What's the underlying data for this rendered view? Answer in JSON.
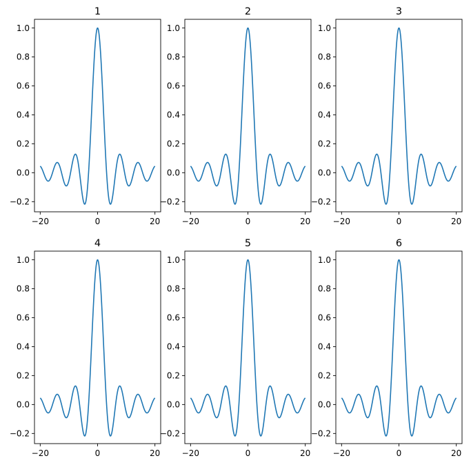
{
  "figure": {
    "background": "#ffffff",
    "line_color": "#1f77b4",
    "layout": "2x3 grid"
  },
  "chart_data": [
    {
      "type": "line",
      "title": "1",
      "function": "sin(x)/x",
      "x_range": [
        -20,
        20
      ],
      "xlim": [
        -22,
        22
      ],
      "ylim": [
        -0.27,
        1.06
      ],
      "xticks": [
        -20,
        0,
        20
      ],
      "xtick_labels": [
        "−20",
        "0",
        "20"
      ],
      "yticks": [
        -0.2,
        0,
        0.2,
        0.4,
        0.6,
        0.8,
        1.0
      ],
      "ytick_labels": [
        "−0.2",
        "0.0",
        "0.2",
        "0.4",
        "0.6",
        "0.8",
        "1.0"
      ],
      "series": [
        {
          "x": [
            -20,
            -17.22,
            -14.07,
            -10.9,
            -7.73,
            -4.49,
            0,
            4.49,
            7.73,
            10.9,
            14.07,
            17.22,
            20
          ],
          "y": [
            0.046,
            -0.058,
            0.071,
            -0.091,
            0.128,
            -0.217,
            1.0,
            -0.217,
            0.128,
            -0.091,
            0.071,
            -0.058,
            0.046
          ]
        }
      ],
      "grid": false,
      "legend": "none"
    },
    {
      "type": "line",
      "title": "2",
      "function": "sin(x)/x",
      "x_range": [
        -20,
        20
      ],
      "xlim": [
        -22,
        22
      ],
      "ylim": [
        -0.27,
        1.06
      ],
      "xticks": [
        -20,
        0,
        20
      ],
      "xtick_labels": [
        "−20",
        "0",
        "20"
      ],
      "yticks": [
        -0.2,
        0,
        0.2,
        0.4,
        0.6,
        0.8,
        1.0
      ],
      "ytick_labels": [
        "−0.2",
        "0.0",
        "0.2",
        "0.4",
        "0.6",
        "0.8",
        "1.0"
      ],
      "series": [
        {
          "x": [
            -20,
            -17.22,
            -14.07,
            -10.9,
            -7.73,
            -4.49,
            0,
            4.49,
            7.73,
            10.9,
            14.07,
            17.22,
            20
          ],
          "y": [
            0.046,
            -0.058,
            0.071,
            -0.091,
            0.128,
            -0.217,
            1.0,
            -0.217,
            0.128,
            -0.091,
            0.071,
            -0.058,
            0.046
          ]
        }
      ],
      "grid": false,
      "legend": "none"
    },
    {
      "type": "line",
      "title": "3",
      "function": "sin(x)/x",
      "x_range": [
        -20,
        20
      ],
      "xlim": [
        -22,
        22
      ],
      "ylim": [
        -0.27,
        1.06
      ],
      "xticks": [
        -20,
        0,
        20
      ],
      "xtick_labels": [
        "−20",
        "0",
        "20"
      ],
      "yticks": [
        -0.2,
        0,
        0.2,
        0.4,
        0.6,
        0.8,
        1.0
      ],
      "ytick_labels": [
        "−0.2",
        "0.0",
        "0.2",
        "0.4",
        "0.6",
        "0.8",
        "1.0"
      ],
      "series": [
        {
          "x": [
            -20,
            -17.22,
            -14.07,
            -10.9,
            -7.73,
            -4.49,
            0,
            4.49,
            7.73,
            10.9,
            14.07,
            17.22,
            20
          ],
          "y": [
            0.046,
            -0.058,
            0.071,
            -0.091,
            0.128,
            -0.217,
            1.0,
            -0.217,
            0.128,
            -0.091,
            0.071,
            -0.058,
            0.046
          ]
        }
      ],
      "grid": false,
      "legend": "none"
    },
    {
      "type": "line",
      "title": "4",
      "function": "sin(x)/x",
      "x_range": [
        -20,
        20
      ],
      "xlim": [
        -22,
        22
      ],
      "ylim": [
        -0.27,
        1.06
      ],
      "xticks": [
        -20,
        0,
        20
      ],
      "xtick_labels": [
        "−20",
        "0",
        "20"
      ],
      "yticks": [
        -0.2,
        0,
        0.2,
        0.4,
        0.6,
        0.8,
        1.0
      ],
      "ytick_labels": [
        "−0.2",
        "0.0",
        "0.2",
        "0.4",
        "0.6",
        "0.8",
        "1.0"
      ],
      "series": [
        {
          "x": [
            -20,
            -17.22,
            -14.07,
            -10.9,
            -7.73,
            -4.49,
            0,
            4.49,
            7.73,
            10.9,
            14.07,
            17.22,
            20
          ],
          "y": [
            0.046,
            -0.058,
            0.071,
            -0.091,
            0.128,
            -0.217,
            1.0,
            -0.217,
            0.128,
            -0.091,
            0.071,
            -0.058,
            0.046
          ]
        }
      ],
      "grid": false,
      "legend": "none"
    },
    {
      "type": "line",
      "title": "5",
      "function": "sin(x)/x",
      "x_range": [
        -20,
        20
      ],
      "xlim": [
        -22,
        22
      ],
      "ylim": [
        -0.27,
        1.06
      ],
      "xticks": [
        -20,
        0,
        20
      ],
      "xtick_labels": [
        "−20",
        "0",
        "20"
      ],
      "yticks": [
        -0.2,
        0,
        0.2,
        0.4,
        0.6,
        0.8,
        1.0
      ],
      "ytick_labels": [
        "−0.2",
        "0.0",
        "0.2",
        "0.4",
        "0.6",
        "0.8",
        "1.0"
      ],
      "series": [
        {
          "x": [
            -20,
            -17.22,
            -14.07,
            -10.9,
            -7.73,
            -4.49,
            0,
            4.49,
            7.73,
            10.9,
            14.07,
            17.22,
            20
          ],
          "y": [
            0.046,
            -0.058,
            0.071,
            -0.091,
            0.128,
            -0.217,
            1.0,
            -0.217,
            0.128,
            -0.091,
            0.071,
            -0.058,
            0.046
          ]
        }
      ],
      "grid": false,
      "legend": "none"
    },
    {
      "type": "line",
      "title": "6",
      "function": "sin(x)/x",
      "x_range": [
        -20,
        20
      ],
      "xlim": [
        -22,
        22
      ],
      "ylim": [
        -0.27,
        1.06
      ],
      "xticks": [
        -20,
        0,
        20
      ],
      "xtick_labels": [
        "−20",
        "0",
        "20"
      ],
      "yticks": [
        -0.2,
        0,
        0.2,
        0.4,
        0.6,
        0.8,
        1.0
      ],
      "ytick_labels": [
        "−0.2",
        "0.0",
        "0.2",
        "0.4",
        "0.6",
        "0.8",
        "1.0"
      ],
      "series": [
        {
          "x": [
            -20,
            -17.22,
            -14.07,
            -10.9,
            -7.73,
            -4.49,
            0,
            4.49,
            7.73,
            10.9,
            14.07,
            17.22,
            20
          ],
          "y": [
            0.046,
            -0.058,
            0.071,
            -0.091,
            0.128,
            -0.217,
            1.0,
            -0.217,
            0.128,
            -0.091,
            0.071,
            -0.058,
            0.046
          ]
        }
      ],
      "grid": false,
      "legend": "none"
    }
  ]
}
